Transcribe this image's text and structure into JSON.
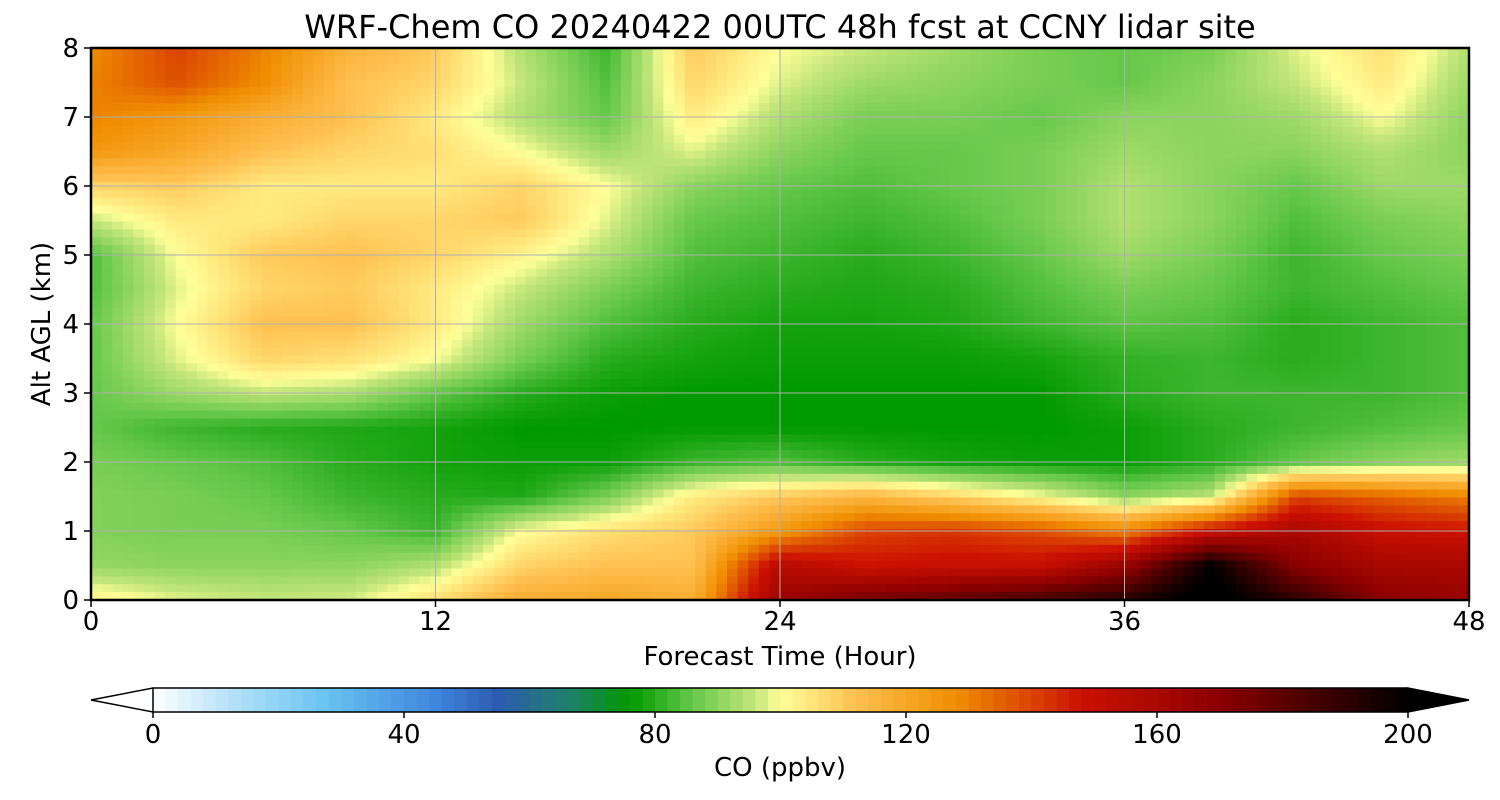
{
  "chart_data": {
    "type": "heatmap",
    "title": "WRF-Chem CO  20240422 00UTC 48h fcst at CCNY lidar site",
    "xlabel": "Forecast Time (Hour)",
    "ylabel": "Alt AGL (km)",
    "xlim": [
      0,
      48
    ],
    "ylim": [
      0,
      8
    ],
    "xticks": [
      0,
      12,
      24,
      36,
      48
    ],
    "yticks": [
      0,
      1,
      2,
      3,
      4,
      5,
      6,
      7,
      8
    ],
    "grid": true,
    "x": [
      0,
      3,
      6,
      9,
      12,
      15,
      18,
      21,
      24,
      27,
      30,
      33,
      36,
      39,
      42,
      45,
      48
    ],
    "y": [
      0,
      0.5,
      1,
      1.5,
      2,
      2.5,
      3,
      3.5,
      4,
      4.5,
      5,
      5.5,
      6,
      6.5,
      7,
      7.5,
      8
    ],
    "z": [
      [
        103,
        98,
        96,
        97,
        106,
        118,
        120,
        118,
        165,
        175,
        180,
        185,
        192,
        205,
        190,
        170,
        165
      ],
      [
        91,
        90,
        90,
        90,
        94,
        108,
        112,
        112,
        155,
        148,
        150,
        150,
        165,
        200,
        170,
        160,
        160
      ],
      [
        89,
        88,
        88,
        86,
        82,
        100,
        106,
        110,
        125,
        140,
        142,
        138,
        130,
        150,
        160,
        150,
        148
      ],
      [
        89,
        88,
        86,
        82,
        80,
        79,
        88,
        104,
        110,
        115,
        108,
        100,
        90,
        95,
        140,
        135,
        130
      ],
      [
        88,
        86,
        84,
        80,
        78,
        77,
        77,
        82,
        84,
        80,
        78,
        77,
        77,
        80,
        86,
        90,
        92
      ],
      [
        86,
        82,
        80,
        79,
        78,
        76,
        76,
        76,
        76,
        76,
        76,
        76,
        77,
        80,
        82,
        84,
        86
      ],
      [
        86,
        92,
        96,
        94,
        86,
        80,
        77,
        76,
        76,
        76,
        76,
        76,
        80,
        82,
        82,
        82,
        84
      ],
      [
        86,
        98,
        108,
        106,
        100,
        88,
        80,
        78,
        77,
        77,
        77,
        78,
        81,
        82,
        80,
        82,
        84
      ],
      [
        86,
        100,
        112,
        112,
        104,
        92,
        84,
        80,
        78,
        78,
        79,
        82,
        85,
        84,
        80,
        82,
        84
      ],
      [
        84,
        98,
        108,
        110,
        104,
        96,
        88,
        82,
        80,
        79,
        80,
        84,
        88,
        86,
        82,
        84,
        86
      ],
      [
        84,
        100,
        110,
        112,
        108,
        102,
        94,
        84,
        82,
        80,
        82,
        86,
        92,
        88,
        82,
        86,
        88
      ],
      [
        96,
        104,
        104,
        108,
        108,
        110,
        98,
        86,
        84,
        82,
        84,
        88,
        94,
        90,
        84,
        88,
        90
      ],
      [
        108,
        110,
        104,
        104,
        104,
        108,
        100,
        90,
        86,
        84,
        86,
        88,
        94,
        90,
        86,
        92,
        92
      ],
      [
        125,
        120,
        112,
        108,
        106,
        100,
        92,
        98,
        90,
        86,
        86,
        88,
        92,
        90,
        90,
        94,
        90
      ],
      [
        130,
        125,
        118,
        112,
        104,
        94,
        86,
        104,
        94,
        88,
        88,
        86,
        90,
        90,
        92,
        100,
        90
      ],
      [
        130,
        138,
        128,
        112,
        108,
        96,
        84,
        108,
        98,
        92,
        90,
        88,
        86,
        90,
        96,
        104,
        92
      ],
      [
        128,
        140,
        130,
        116,
        110,
        94,
        82,
        110,
        100,
        96,
        92,
        88,
        86,
        88,
        98,
        106,
        94
      ]
    ],
    "colorbar": {
      "label": "CO  (ppbv)",
      "range": [
        0,
        200
      ],
      "ticks": [
        0,
        40,
        80,
        120,
        160,
        200
      ],
      "extend": "both",
      "stops": [
        {
          "v": 0,
          "c": "#ffffff"
        },
        {
          "v": 12,
          "c": "#b8e2f8"
        },
        {
          "v": 28,
          "c": "#66c2f0"
        },
        {
          "v": 45,
          "c": "#3f86dd"
        },
        {
          "v": 55,
          "c": "#2d5bb0"
        },
        {
          "v": 66,
          "c": "#1f7f6b"
        },
        {
          "v": 76,
          "c": "#009900"
        },
        {
          "v": 86,
          "c": "#66c84a"
        },
        {
          "v": 96,
          "c": "#c4e67a"
        },
        {
          "v": 100,
          "c": "#ffff99"
        },
        {
          "v": 112,
          "c": "#ffc050"
        },
        {
          "v": 128,
          "c": "#f08e00"
        },
        {
          "v": 148,
          "c": "#cc1100"
        },
        {
          "v": 170,
          "c": "#8b0000"
        },
        {
          "v": 200,
          "c": "#000000"
        }
      ]
    }
  }
}
